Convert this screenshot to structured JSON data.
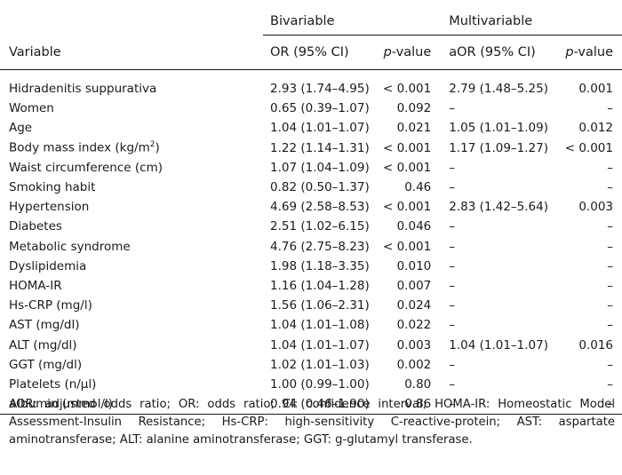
{
  "header": {
    "group_bivariable": "Bivariable",
    "group_multivariable": "Multivariable",
    "col_variable": "Variable",
    "col_or": "OR (95% CI)",
    "col_pvalue_italic": "p",
    "col_pvalue_suffix": "-value",
    "col_aor": "aOR (95% CI)",
    "col_pvalue2_italic": "p",
    "col_pvalue2_suffix": "-value"
  },
  "rows": [
    {
      "variable": "Hidradenitis suppurativa",
      "or": "2.93 (1.74–4.95)",
      "p": "< 0.001",
      "aor": "2.79 (1.48–5.25)",
      "p2": "0.001"
    },
    {
      "variable": "Women",
      "or": "0.65 (0.39–1.07)",
      "p": "0.092",
      "aor": "–",
      "p2": "–"
    },
    {
      "variable": "Age",
      "or": "1.04 (1.01–1.07)",
      "p": "0.021",
      "aor": "1.05 (1.01–1.09)",
      "p2": "0.012"
    },
    {
      "variable": "Body mass index (kg/m",
      "variable_sup": "2",
      "variable_after": ")",
      "or": "1.22 (1.14–1.31)",
      "p": "< 0.001",
      "aor": "1.17 (1.09–1.27)",
      "p2": "< 0.001"
    },
    {
      "variable": "Waist circumference (cm)",
      "or": "1.07 (1.04–1.09)",
      "p": "< 0.001",
      "aor": "–",
      "p2": "–"
    },
    {
      "variable": "Smoking habit",
      "or": "0.82 (0.50–1.37)",
      "p": "0.46",
      "aor": "–",
      "p2": "–"
    },
    {
      "variable": "Hypertension",
      "or": "4.69 (2.58–8.53)",
      "p": "< 0.001",
      "aor": "2.83 (1.42–5.64)",
      "p2": "0.003"
    },
    {
      "variable": "Diabetes",
      "or": "2.51 (1.02–6.15)",
      "p": "0.046",
      "aor": "–",
      "p2": "–"
    },
    {
      "variable": "Metabolic syndrome",
      "or": "4.76 (2.75–8.23)",
      "p": "< 0.001",
      "aor": "–",
      "p2": "–"
    },
    {
      "variable": "Dyslipidemia",
      "or": "1.98 (1.18–3.35)",
      "p": "0.010",
      "aor": "–",
      "p2": "–"
    },
    {
      "variable": "HOMA-IR",
      "or": "1.16 (1.04–1.28)",
      "p": "0.007",
      "aor": "–",
      "p2": "–"
    },
    {
      "variable": "Hs-CRP (mg/l)",
      "or": "1.56 (1.06–2.31)",
      "p": "0.024",
      "aor": "–",
      "p2": "–"
    },
    {
      "variable": "AST (mg/dl)",
      "or": "1.04 (1.01–1.08)",
      "p": "0.022",
      "aor": "–",
      "p2": "–"
    },
    {
      "variable": "ALT (mg/dl)",
      "or": "1.04 (1.01–1.07)",
      "p": "0.003",
      "aor": "1.04 (1.01–1.07)",
      "p2": "0.016"
    },
    {
      "variable": "GGT (mg/dl)",
      "or": "1.02 (1.01–1.03)",
      "p": "0.002",
      "aor": "–",
      "p2": "–"
    },
    {
      "variable": "Platelets (n/µl)",
      "or": "1.00 (0.99–1.00)",
      "p": "0.80",
      "aor": "–",
      "p2": "–"
    },
    {
      "variable": "Albumin (mmol/l)",
      "or": "0.94 (0.46–1.90)",
      "p": "0.86",
      "aor": "–",
      "p2": "–"
    }
  ],
  "footnote": "aOR: adjusted odds ratio; OR: odds ratio; CI: confidence interval; HOMA-IR: Homeostatic Model Assessment-Insulin Resistance; Hs-CRP: high-sensitivity C-reactive-protein; AST: aspartate aminotransferase; ALT: alanine aminotransferase; GGT: g-glutamyl transferase."
}
